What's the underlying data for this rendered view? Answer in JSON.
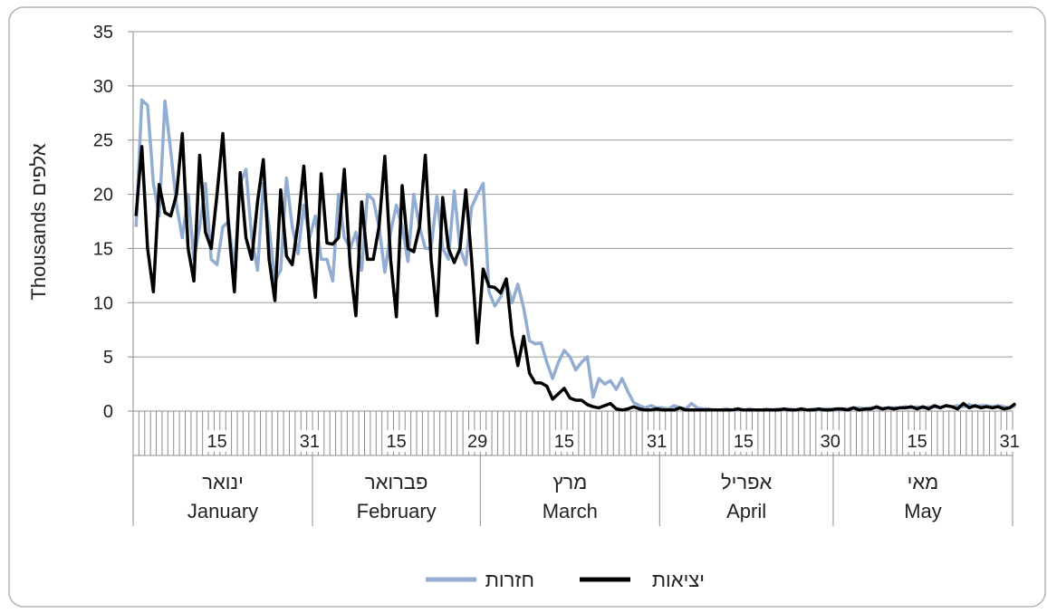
{
  "chart_data": {
    "type": "line",
    "ylabel": "Thousands אלפים",
    "ylim": [
      0,
      35
    ],
    "yticks": [
      "0",
      "5",
      "10",
      "15",
      "20",
      "25",
      "30",
      "35"
    ],
    "grid": true,
    "legend_position": "bottom",
    "x_day_ticks": [
      "15",
      "31",
      "15",
      "29",
      "15",
      "31",
      "15",
      "30",
      "15",
      "31"
    ],
    "months": [
      {
        "he": "ינואר",
        "en": "January",
        "days": 31
      },
      {
        "he": "פברואר",
        "en": "February",
        "days": 29
      },
      {
        "he": "מרץ",
        "en": "March",
        "days": 31
      },
      {
        "he": "אפריל",
        "en": "April",
        "days": 30
      },
      {
        "he": "מאי",
        "en": "May",
        "days": 31
      }
    ],
    "series": [
      {
        "name": "חזרות",
        "color": "#92acd2",
        "values": [
          17,
          28.7,
          28.2,
          21,
          18,
          28.6,
          24,
          19,
          16,
          20,
          14,
          17,
          21,
          14,
          13.5,
          17,
          17.5,
          13,
          21,
          22.3,
          16,
          13,
          21,
          17,
          12,
          13,
          21.5,
          17,
          14.5,
          19,
          16,
          18,
          14,
          14,
          12,
          20,
          16,
          15,
          16.5,
          13,
          20,
          19.5,
          17,
          12.8,
          16.5,
          19,
          17,
          13.8,
          20,
          17,
          15,
          15,
          19.8,
          15,
          14,
          20.3,
          15,
          13.5,
          18.8,
          20,
          21,
          11,
          9.7,
          10.5,
          12,
          10,
          11.7,
          9.5,
          6.5,
          6.2,
          6.3,
          4.5,
          3,
          4.5,
          5.6,
          5,
          3.8,
          4.5,
          5,
          1.3,
          3,
          2.5,
          2.8,
          2,
          3,
          1.8,
          0.8,
          0.5,
          0.3,
          0.5,
          0.3,
          0.3,
          0.2,
          0.5,
          0.3,
          0.2,
          0.7,
          0.3,
          0.2,
          0.2,
          0.1,
          0.1,
          0.2,
          0.1,
          0.1,
          0.1,
          0.2,
          0.1,
          0.1,
          0.2,
          0.1,
          0.2,
          0.1,
          0.2,
          0.1,
          0.2,
          0.1,
          0.2,
          0.1,
          0.2,
          0.2,
          0.1,
          0.2,
          0.2,
          0.3,
          0.3,
          0.2,
          0.3,
          0.3,
          0.2,
          0.3,
          0.3,
          0.3,
          0.4,
          0.3,
          0.4,
          0.3,
          0.4,
          0.4,
          0.3,
          0.5,
          0.4,
          0.5,
          0.4,
          0.6,
          0.4,
          0.5,
          0.5,
          0.4,
          0.5,
          0.4,
          0.3,
          0.5
        ]
      },
      {
        "name": "יציאות",
        "color": "#000000",
        "values": [
          18,
          24.4,
          15,
          11,
          20.9,
          18.3,
          18,
          20,
          25.6,
          15,
          12,
          23.6,
          16.5,
          15,
          20,
          25.6,
          17,
          11,
          22,
          16,
          14,
          19.3,
          23.2,
          14,
          10.2,
          20.4,
          14.3,
          13.5,
          17.3,
          22.6,
          15,
          10.5,
          21.9,
          15.5,
          15.4,
          16,
          22.3,
          13.5,
          8.8,
          19.3,
          14,
          14,
          17,
          23.5,
          14,
          8.7,
          20.8,
          15,
          14.7,
          17,
          23.6,
          14,
          8.8,
          19.7,
          15,
          13.7,
          15,
          20.4,
          14,
          6.3,
          13.1,
          11.5,
          11.4,
          10.9,
          12.2,
          7,
          4.2,
          6.9,
          3.5,
          2.6,
          2.6,
          2.3,
          1.1,
          1.6,
          2.1,
          1.2,
          1,
          1,
          0.6,
          0.4,
          0.3,
          0.5,
          0.7,
          0.2,
          0.1,
          0.2,
          0.4,
          0.2,
          0.1,
          0.1,
          0.2,
          0.1,
          0.1,
          0.1,
          0.3,
          0.1,
          0.1,
          0.1,
          0.1,
          0.1,
          0.1,
          0.1,
          0.1,
          0.1,
          0.2,
          0.1,
          0.1,
          0.1,
          0.1,
          0.1,
          0.1,
          0.1,
          0.2,
          0.1,
          0.1,
          0.2,
          0.1,
          0.1,
          0.2,
          0.1,
          0.1,
          0.2,
          0.2,
          0.1,
          0.3,
          0.1,
          0.2,
          0.2,
          0.4,
          0.2,
          0.3,
          0.2,
          0.3,
          0.3,
          0.4,
          0.2,
          0.4,
          0.2,
          0.5,
          0.3,
          0.5,
          0.4,
          0.2,
          0.7,
          0.3,
          0.5,
          0.3,
          0.4,
          0.3,
          0.4,
          0.2,
          0.3,
          0.7
        ]
      }
    ]
  }
}
